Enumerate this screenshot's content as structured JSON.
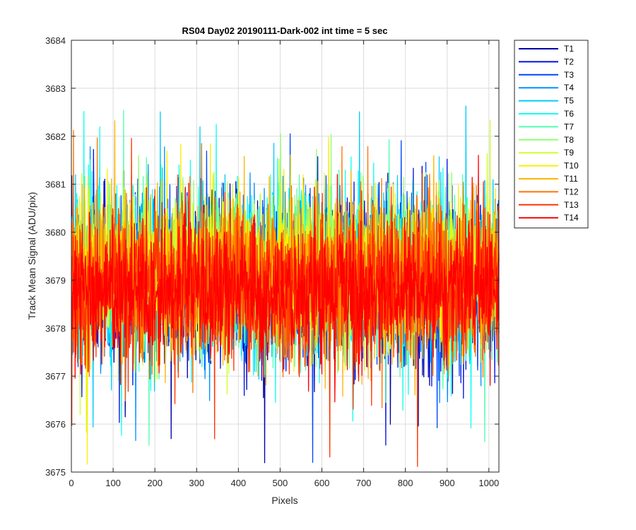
{
  "chart_data": {
    "type": "line",
    "title": "RS04 Day02 20190111-Dark-002 int time = 5 sec",
    "xlabel": "Pixels",
    "ylabel": "Track Mean Signal (ADU/pix)",
    "xlim": [
      0,
      1024
    ],
    "ylim": [
      3675,
      3684
    ],
    "xticks": [
      0,
      100,
      200,
      300,
      400,
      500,
      600,
      700,
      800,
      900,
      1000
    ],
    "yticks": [
      3675,
      3676,
      3677,
      3678,
      3679,
      3680,
      3681,
      3682,
      3683,
      3684
    ],
    "grid": true,
    "legend_position": "outside-top-right",
    "series": [
      {
        "name": "T1",
        "color": "#0000A6",
        "mean": 3679.0,
        "noise": 1.05
      },
      {
        "name": "T2",
        "color": "#0010E0",
        "mean": 3679.0,
        "noise": 1.05
      },
      {
        "name": "T3",
        "color": "#0046FF",
        "mean": 3679.05,
        "noise": 1.05
      },
      {
        "name": "T4",
        "color": "#0090FF",
        "mean": 3679.1,
        "noise": 1.05
      },
      {
        "name": "T5",
        "color": "#00CCFF",
        "mean": 3679.1,
        "noise": 1.05
      },
      {
        "name": "T6",
        "color": "#10FFEF",
        "mean": 3679.15,
        "noise": 1.05
      },
      {
        "name": "T7",
        "color": "#50FFAF",
        "mean": 3679.15,
        "noise": 1.0
      },
      {
        "name": "T8",
        "color": "#90FF6F",
        "mean": 3679.2,
        "noise": 1.0
      },
      {
        "name": "T9",
        "color": "#D0FF2F",
        "mean": 3679.2,
        "noise": 1.0
      },
      {
        "name": "T10",
        "color": "#FFEE00",
        "mean": 3679.2,
        "noise": 1.0
      },
      {
        "name": "T11",
        "color": "#FFB400",
        "mean": 3679.1,
        "noise": 1.0
      },
      {
        "name": "T12",
        "color": "#FF7400",
        "mean": 3679.0,
        "noise": 1.0
      },
      {
        "name": "T13",
        "color": "#FF3400",
        "mean": 3678.85,
        "noise": 0.95
      },
      {
        "name": "T14",
        "color": "#FF0000",
        "mean": 3678.75,
        "noise": 0.95
      }
    ]
  }
}
